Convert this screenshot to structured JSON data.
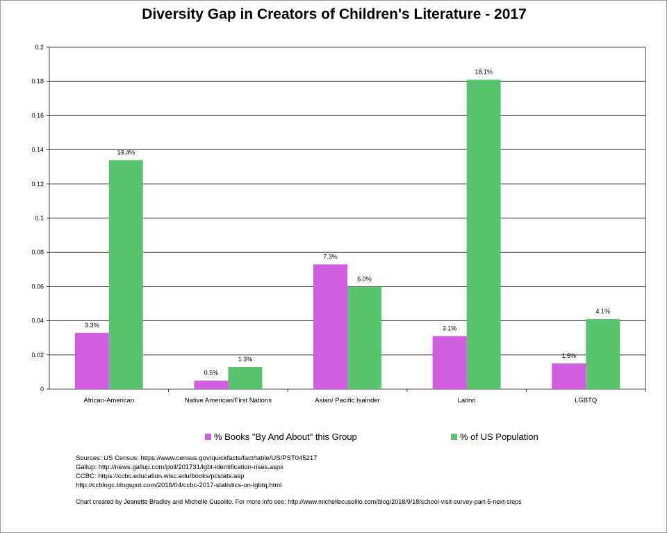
{
  "chart_data": {
    "type": "bar",
    "title": "Diversity Gap in Creators of Children's Literature - 2017",
    "categories": [
      "African-American",
      "Native American/First Nations",
      "Asian/ Pacific Isalnder",
      "Latino",
      "LGBTQ"
    ],
    "series": [
      {
        "name": "% Books \"By And About\" this Group",
        "color": "#d05ce0",
        "values": [
          0.033,
          0.005,
          0.073,
          0.031,
          0.015
        ],
        "labels": [
          "3.3%",
          "0.5%",
          "7.3%",
          "3.1%",
          "1.5%"
        ]
      },
      {
        "name": "% of US Population",
        "color": "#58c46e",
        "values": [
          0.134,
          0.013,
          0.06,
          0.181,
          0.041
        ],
        "labels": [
          "13.4%",
          "1.3%",
          "6.0%",
          "18.1%",
          "4.1%"
        ]
      }
    ],
    "ylim": [
      0,
      0.2
    ],
    "yticks": [
      "0",
      "0.02",
      "0.04",
      "0.06",
      "0.08",
      "0.1",
      "0.12",
      "0.14",
      "0.16",
      "0.18",
      "0.2"
    ],
    "xlabel": "",
    "ylabel": "",
    "grid": true,
    "legend": "bottom"
  },
  "sources": [
    "Sources:  US Census: https://www.census.gov/quickfacts/fact/table/US/PST045217",
    "Gallup: http://news.gallup.com/poll/201731/lgbt-identification-rises.aspx",
    "CCBC:  https://ccbc.education.wisc.edu/books/pcstats.asp",
    "http://ccblogc.blogspot.com/2018/04/ccbc-2017-statistics-on-lgbtq.html"
  ],
  "credit": "Chart created by Jeanette Bradley and Michelle Cusolito. For more info see:  http://www.michellecusolito.com/blog/2018/9/18/school-visit-survey-part-5-next-steps"
}
